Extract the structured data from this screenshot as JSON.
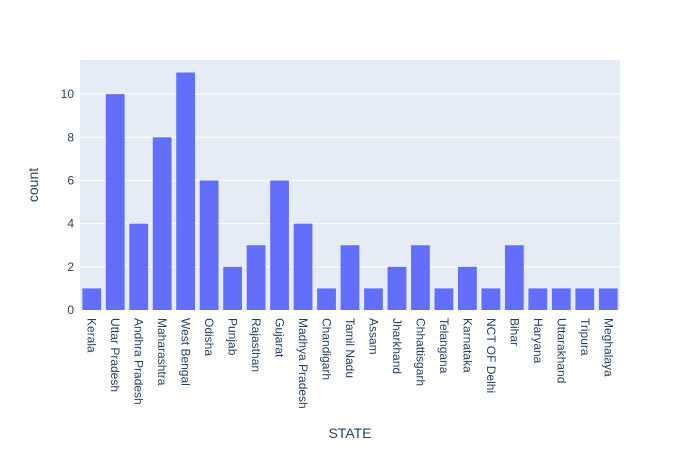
{
  "chart_data": {
    "type": "bar",
    "xlabel": "STATE",
    "ylabel": "count",
    "categories": [
      "Kerala",
      "Uttar Pradesh",
      "Andhra Pradesh",
      "Maharashtra",
      "West Bengal",
      "Odisha",
      "Punjab",
      "Rajasthan",
      "Gujarat",
      "Madhya Pradesh",
      "Chandigarh",
      "Tamil Nadu",
      "Assam",
      "Jharkhand",
      "Chhattisgarh",
      "Telangana",
      "Karnataka",
      "NCT OF Delhi",
      "Bihar",
      "Haryana",
      "Uttarakhand",
      "Tripura",
      "Meghalaya"
    ],
    "values": [
      1,
      10,
      4,
      8,
      11,
      6,
      2,
      3,
      6,
      4,
      1,
      3,
      1,
      2,
      3,
      1,
      2,
      1,
      3,
      1,
      1,
      1,
      1
    ],
    "ylim": [
      0,
      11.58
    ],
    "yticks": [
      0,
      2,
      4,
      6,
      8,
      10
    ],
    "grid": true,
    "colors": {
      "bar": "#636efa",
      "plot_background": "#e5ecf6",
      "grid": "#ffffff",
      "text": "#2a3f5f"
    }
  }
}
